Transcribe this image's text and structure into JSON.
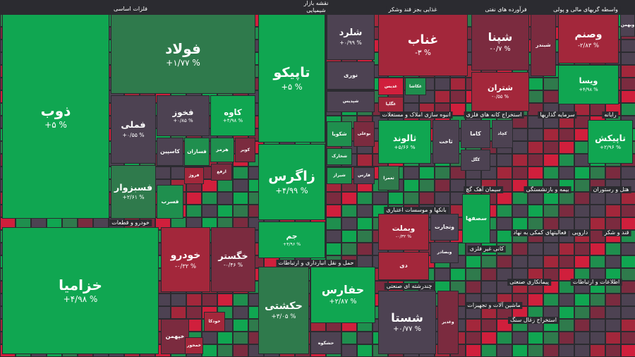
{
  "header": {
    "title": "نقشه بازار",
    "subtitle": "شیمیایی"
  },
  "sectors": [
    {
      "title": "فلزات اساسی",
      "tiles": [
        {
          "name": "ذوب",
          "change": "+۵ %"
        },
        {
          "name": "فولاد",
          "change": "+۱/۷۷ %"
        },
        {
          "name": "فملی",
          "change": "+۰/۵۵ %"
        },
        {
          "name": "فخوز",
          "change": "+۰/۸۵ %"
        },
        {
          "name": "کاوه",
          "change": "+۴/۹۸ %"
        },
        {
          "name": "فسبزوار",
          "change": "+۲/۶۱ %"
        },
        {
          "name": "کاسپین"
        },
        {
          "name": "فسازان"
        },
        {
          "name": "هرمز"
        },
        {
          "name": "کویر"
        },
        {
          "name": "فسرب"
        },
        {
          "name": "فروژ"
        },
        {
          "name": "ارفع"
        }
      ]
    },
    {
      "title": "خودرو و قطعات",
      "tiles": [
        {
          "name": "خزامیا",
          "change": "+۴/۹۸ %"
        },
        {
          "name": "خودرو",
          "change": "-۰/۳۲ %"
        },
        {
          "name": "خگستر",
          "change": "-۰/۴۶ %"
        },
        {
          "name": "خپهمن"
        },
        {
          "name": "خمحور"
        },
        {
          "name": "خودکا"
        }
      ]
    },
    {
      "title": "شیمیایی",
      "tiles": [
        {
          "name": "تاپیکو",
          "change": "+۵ %"
        },
        {
          "name": "زاگرس",
          "change": "+۴/۹۹ %"
        },
        {
          "name": "جم",
          "change": "+۴/۹۶ %"
        },
        {
          "name": "شلرد",
          "change": "+۰/۹۹ %"
        },
        {
          "name": "نوری"
        },
        {
          "name": "شپدیس"
        },
        {
          "name": "شکویا"
        },
        {
          "name": "بوعلی"
        },
        {
          "name": "شخارک"
        },
        {
          "name": "شیراز"
        },
        {
          "name": "فارس"
        }
      ]
    },
    {
      "title": "حمل و نقل انبارداری و ارتباطات",
      "tiles": [
        {
          "name": "حکشتی",
          "change": "+۳/۰۵ %"
        },
        {
          "name": "حفارس",
          "change": "+۲/۸۷ %"
        },
        {
          "name": "حشکوه"
        }
      ]
    },
    {
      "title": "غذایی بجز قند وشکر",
      "tiles": [
        {
          "name": "غناب",
          "change": "-۳ %"
        },
        {
          "name": "غدیس"
        },
        {
          "name": "غکاشا"
        },
        {
          "name": "غگلپا"
        }
      ]
    },
    {
      "title": "فرآورده های نفتی",
      "tiles": [
        {
          "name": "شپنا",
          "change": "-۰/۷ %"
        },
        {
          "name": "شتران",
          "change": "-۰/۵۵ %"
        },
        {
          "name": "شبندر"
        }
      ]
    },
    {
      "title": "واسطه گریهای مالی و پولی",
      "tiles": [
        {
          "name": "وصنم",
          "change": "-۲/۸۳ %"
        },
        {
          "name": "ویسا",
          "change": "+۴/۹۸ %"
        },
        {
          "name": "وبهمن"
        }
      ]
    },
    {
      "title": "انبوه سازی املاک و مستغلات",
      "tiles": [
        {
          "name": "ثالوند",
          "change": "+۵/۶۶ %"
        },
        {
          "name": "ثاخت"
        },
        {
          "name": "ثعمرا"
        }
      ]
    },
    {
      "title": "استخراج کانه های فلزی",
      "tiles": [
        {
          "name": "کاما"
        },
        {
          "name": "کچاد"
        },
        {
          "name": "کگل"
        }
      ]
    },
    {
      "title": "بانکها و موسسات اعتباری",
      "tiles": [
        {
          "name": "وبملت",
          "change": "-۰/۳۲ %"
        },
        {
          "name": "وتجارت"
        },
        {
          "name": "دی"
        },
        {
          "name": "وبصادر"
        }
      ]
    },
    {
      "title": "چندرشته ای صنعتی",
      "tiles": [
        {
          "name": "شستا",
          "change": "+۰/۷۷ %"
        },
        {
          "name": "وغدیر"
        }
      ]
    },
    {
      "title": "رایانه",
      "tiles": [
        {
          "name": "تاپیکش",
          "change": "+۲/۹۶ %"
        }
      ]
    },
    {
      "title": "سیمان آهک گچ",
      "tiles": [
        {
          "name": "سصفها"
        }
      ]
    },
    {
      "title": "هتل و رستوران",
      "tiles": []
    },
    {
      "title": "بیمه و بازنشستگی",
      "tiles": []
    },
    {
      "title": "سرمایه گذاریها",
      "tiles": []
    },
    {
      "title": "دارویی",
      "tiles": []
    },
    {
      "title": "قند و شکر",
      "tiles": []
    },
    {
      "title": "کانی غیر فلزی",
      "tiles": []
    },
    {
      "title": "ماشین آلات و تجهیزات",
      "tiles": []
    },
    {
      "title": "پیمانکاری صنعتی",
      "tiles": []
    },
    {
      "title": "استخراج زغال سنگ",
      "tiles": []
    },
    {
      "title": "فعالیتهای کمکی به نهاد",
      "tiles": []
    },
    {
      "title": "اطلاعات و ارتباطات",
      "tiles": []
    }
  ]
}
